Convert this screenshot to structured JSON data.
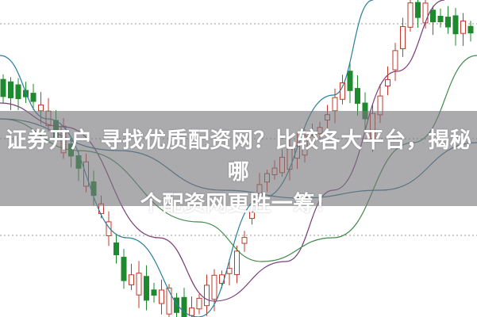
{
  "article": {
    "title_line1": "证券开户 寻找优质配资网？比较各大平台，揭秘哪",
    "title_line2": "个配资网更胜一筹！"
  },
  "background_chart": {
    "type": "candlestick",
    "colors": {
      "up": "#c0392b",
      "down": "#1e8a2e",
      "ma1": "#2a7f9e",
      "ma2": "#7a3e7a",
      "ma3": "#3e8a4a",
      "ma4": "#2f6f8f",
      "grid": "#999999"
    }
  }
}
